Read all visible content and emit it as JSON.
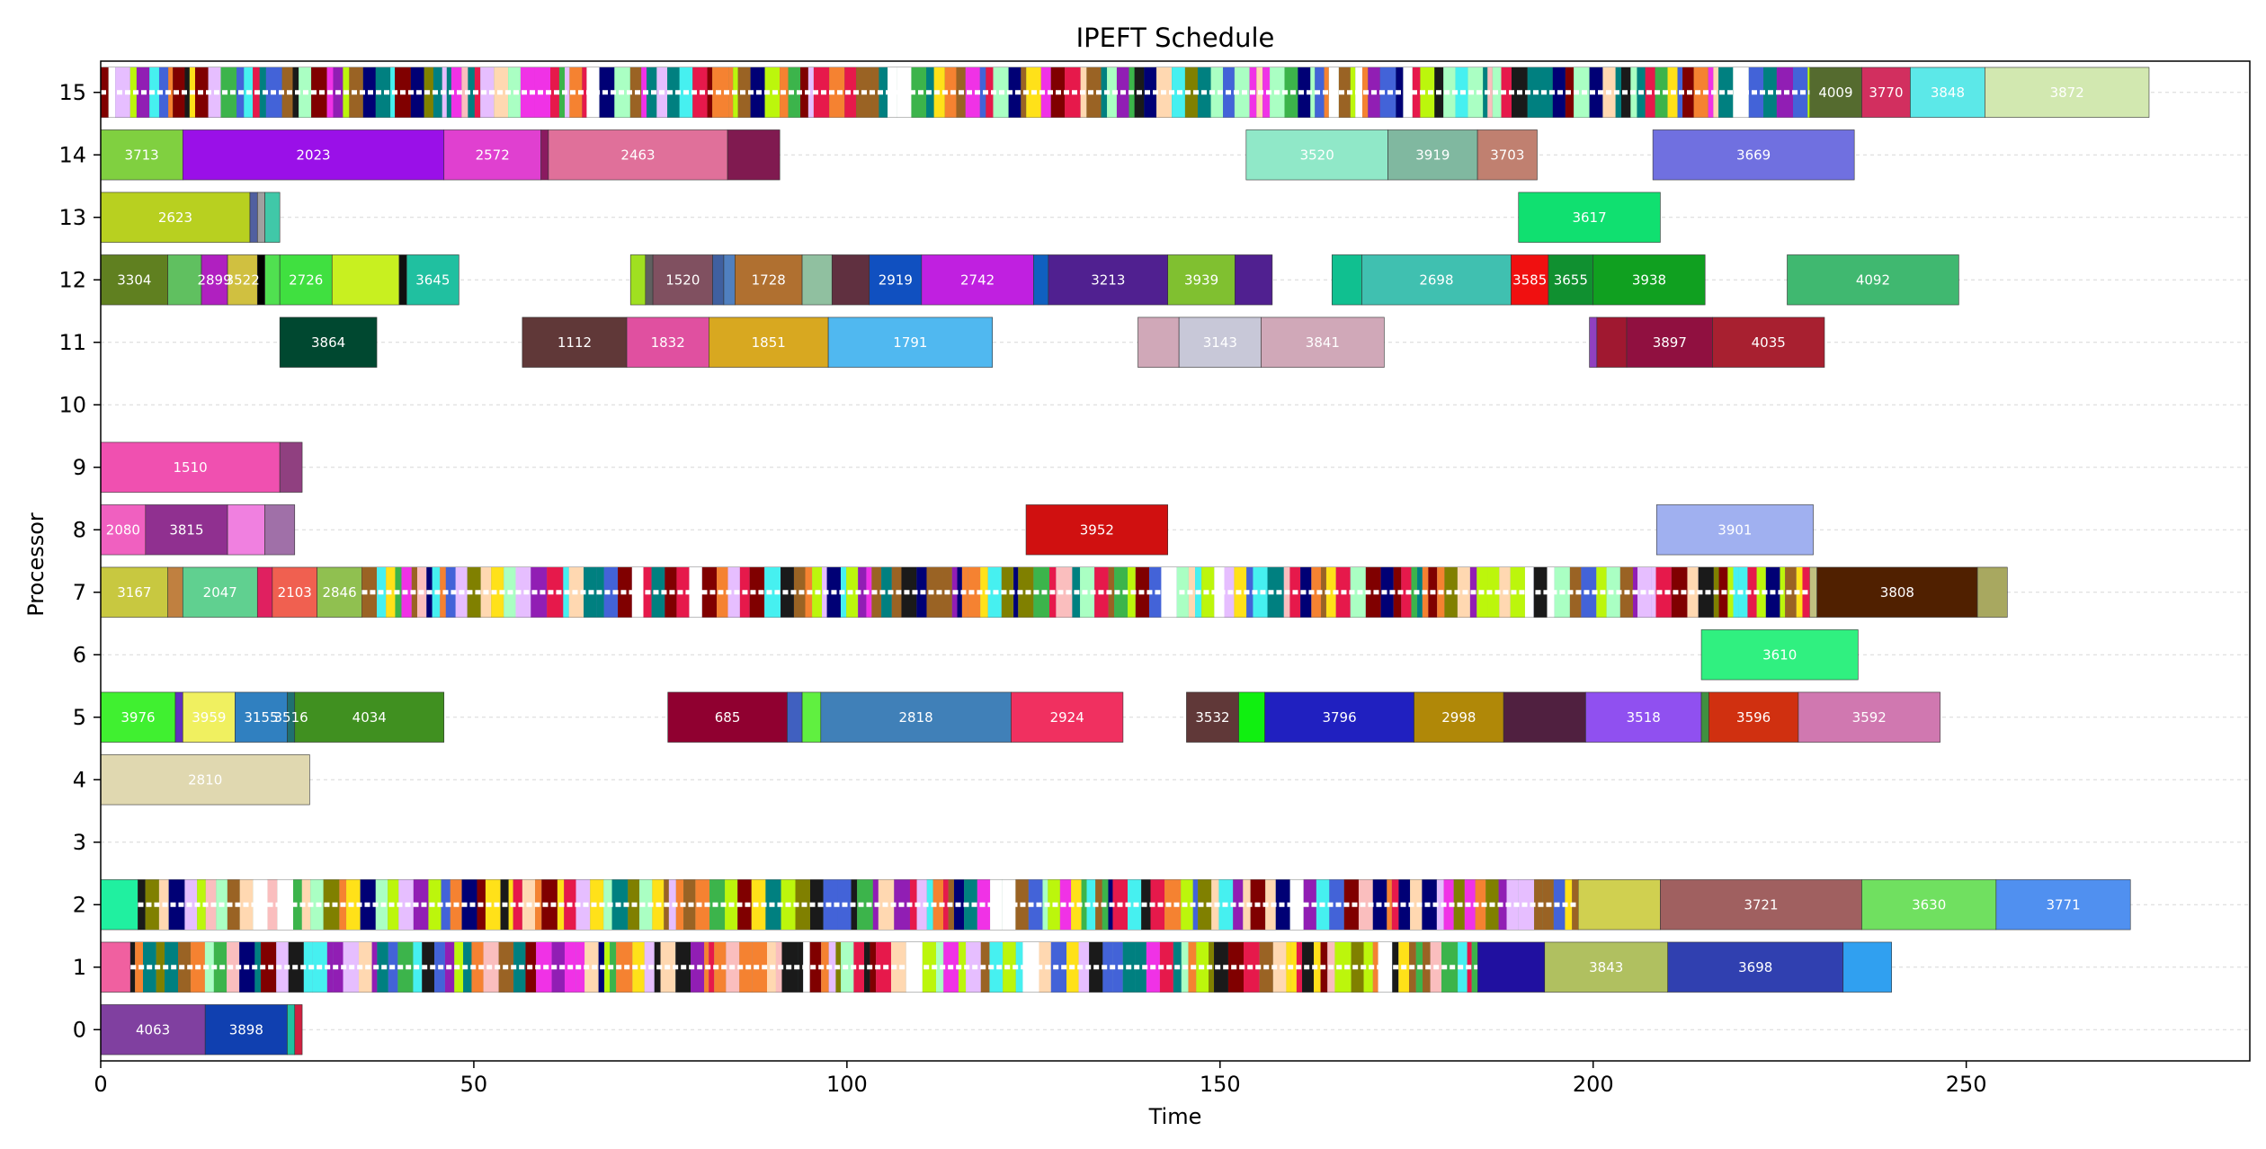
{
  "chart_data": {
    "type": "gantt",
    "title": "IPEFT Schedule",
    "xlabel": "Time",
    "ylabel": "Processor",
    "xlim": [
      0,
      288
    ],
    "ylim": [
      -0.5,
      15.5
    ],
    "x_ticks": [
      0,
      50,
      100,
      150,
      200,
      250
    ],
    "y_ticks": [
      0,
      1,
      2,
      3,
      4,
      5,
      6,
      7,
      8,
      9,
      10,
      11,
      12,
      13,
      14,
      15
    ],
    "grid": "horizontal",
    "bars": [
      {
        "p": 15,
        "s": 0,
        "e": 229,
        "c": "#2e8b57",
        "label": ""
      },
      {
        "p": 15,
        "s": 229,
        "e": 236,
        "c": "#556b2f",
        "label": "4009"
      },
      {
        "p": 15,
        "s": 236,
        "e": 242.5,
        "c": "#d22f5f",
        "label": "3770"
      },
      {
        "p": 15,
        "s": 242.5,
        "e": 252.5,
        "c": "#5ce8e8",
        "label": "3848"
      },
      {
        "p": 15,
        "s": 252.5,
        "e": 274.5,
        "c": "#d2e8b0",
        "label": "3872"
      },
      {
        "p": 14,
        "s": 0,
        "e": 11,
        "c": "#80d040",
        "label": "3713"
      },
      {
        "p": 14,
        "s": 11,
        "e": 46,
        "c": "#9a10e8",
        "label": "2023"
      },
      {
        "p": 14,
        "s": 46,
        "e": 59,
        "c": "#e040d0",
        "label": "2572"
      },
      {
        "p": 14,
        "s": 59,
        "e": 60,
        "c": "#8a1a60",
        "label": ""
      },
      {
        "p": 14,
        "s": 60,
        "e": 84,
        "c": "#e0709a",
        "label": "2463"
      },
      {
        "p": 14,
        "s": 84,
        "e": 91,
        "c": "#801a50",
        "label": ""
      },
      {
        "p": 14,
        "s": 153.5,
        "e": 172.5,
        "c": "#90e8c8",
        "label": "3520"
      },
      {
        "p": 14,
        "s": 172.5,
        "e": 184.5,
        "c": "#80b8a0",
        "label": "3919"
      },
      {
        "p": 14,
        "s": 184.5,
        "e": 192.5,
        "c": "#c08070",
        "label": "3703"
      },
      {
        "p": 14,
        "s": 208,
        "e": 235,
        "c": "#7070e0",
        "label": "3669"
      },
      {
        "p": 13,
        "s": 0,
        "e": 20,
        "c": "#b8d020",
        "label": "2623"
      },
      {
        "p": 13,
        "s": 20,
        "e": 21,
        "c": "#5060a0",
        "label": ""
      },
      {
        "p": 13,
        "s": 21,
        "e": 22,
        "c": "#a0a0a0",
        "label": ""
      },
      {
        "p": 13,
        "s": 22,
        "e": 24,
        "c": "#40c8a8",
        "label": ""
      },
      {
        "p": 13,
        "s": 190,
        "e": 209,
        "c": "#10e070",
        "label": "3617"
      },
      {
        "p": 12,
        "s": 0,
        "e": 9,
        "c": "#608020",
        "label": "3304"
      },
      {
        "p": 12,
        "s": 9,
        "e": 13.5,
        "c": "#60c060",
        "label": ""
      },
      {
        "p": 12,
        "s": 13.5,
        "e": 17,
        "c": "#b020c0",
        "label": "2899"
      },
      {
        "p": 12,
        "s": 17,
        "e": 21,
        "c": "#d0c040",
        "label": "3522"
      },
      {
        "p": 12,
        "s": 21,
        "e": 22,
        "c": "#000000",
        "label": ""
      },
      {
        "p": 12,
        "s": 22,
        "e": 24,
        "c": "#50e050",
        "label": ""
      },
      {
        "p": 12,
        "s": 24,
        "e": 31,
        "c": "#40e040",
        "label": "2726"
      },
      {
        "p": 12,
        "s": 31,
        "e": 40,
        "c": "#c8f020",
        "label": ""
      },
      {
        "p": 12,
        "s": 40,
        "e": 41,
        "c": "#101010",
        "label": ""
      },
      {
        "p": 12,
        "s": 41,
        "e": 48,
        "c": "#20c0a0",
        "label": "3645"
      },
      {
        "p": 12,
        "s": 71,
        "e": 73,
        "c": "#a0e020",
        "label": ""
      },
      {
        "p": 12,
        "s": 73,
        "e": 74,
        "c": "#606060",
        "label": ""
      },
      {
        "p": 12,
        "s": 74,
        "e": 82,
        "c": "#805060",
        "label": "1520"
      },
      {
        "p": 12,
        "s": 82,
        "e": 83.5,
        "c": "#4060a0",
        "label": ""
      },
      {
        "p": 12,
        "s": 83.5,
        "e": 85,
        "c": "#5080c0",
        "label": ""
      },
      {
        "p": 12,
        "s": 85,
        "e": 94,
        "c": "#b07030",
        "label": "1728"
      },
      {
        "p": 12,
        "s": 94,
        "e": 98,
        "c": "#90c0a0",
        "label": ""
      },
      {
        "p": 12,
        "s": 98,
        "e": 103,
        "c": "#603040",
        "label": ""
      },
      {
        "p": 12,
        "s": 103,
        "e": 110,
        "c": "#1050c0",
        "label": "2919"
      },
      {
        "p": 12,
        "s": 110,
        "e": 125,
        "c": "#c020e0",
        "label": "2742"
      },
      {
        "p": 12,
        "s": 125,
        "e": 127,
        "c": "#1060c0",
        "label": ""
      },
      {
        "p": 12,
        "s": 127,
        "e": 143,
        "c": "#502090",
        "label": "3213"
      },
      {
        "p": 12,
        "s": 143,
        "e": 152,
        "c": "#80c030",
        "label": "3939"
      },
      {
        "p": 12,
        "s": 152,
        "e": 157,
        "c": "#502090",
        "label": ""
      },
      {
        "p": 12,
        "s": 165,
        "e": 169,
        "c": "#10c090",
        "label": ""
      },
      {
        "p": 12,
        "s": 169,
        "e": 189,
        "c": "#40c0b0",
        "label": "2698"
      },
      {
        "p": 12,
        "s": 189,
        "e": 194,
        "c": "#f01010",
        "label": "3585"
      },
      {
        "p": 12,
        "s": 194,
        "e": 200,
        "c": "#109030",
        "label": "3655"
      },
      {
        "p": 12,
        "s": 200,
        "e": 215,
        "c": "#10a020",
        "label": "3938"
      },
      {
        "p": 12,
        "s": 226,
        "e": 249,
        "c": "#40b870",
        "label": "4092"
      },
      {
        "p": 11,
        "s": 24,
        "e": 37,
        "c": "#004830",
        "label": "3864"
      },
      {
        "p": 11,
        "s": 56.5,
        "e": 70.5,
        "c": "#603838",
        "label": "1112"
      },
      {
        "p": 11,
        "s": 70.5,
        "e": 81.5,
        "c": "#e050a0",
        "label": "1832"
      },
      {
        "p": 11,
        "s": 81.5,
        "e": 97.5,
        "c": "#d8a820",
        "label": "1851"
      },
      {
        "p": 11,
        "s": 97.5,
        "e": 119.5,
        "c": "#50b8f0",
        "label": "1791"
      },
      {
        "p": 11,
        "s": 139,
        "e": 144.5,
        "c": "#d0a8b8",
        "label": ""
      },
      {
        "p": 11,
        "s": 144.5,
        "e": 155.5,
        "c": "#c8c8d8",
        "label": "3143"
      },
      {
        "p": 11,
        "s": 155.5,
        "e": 172,
        "c": "#d0a8b8",
        "label": "3841"
      },
      {
        "p": 11,
        "s": 199.5,
        "e": 200.5,
        "c": "#9040c0",
        "label": ""
      },
      {
        "p": 11,
        "s": 200.5,
        "e": 204.5,
        "c": "#a01830",
        "label": ""
      },
      {
        "p": 11,
        "s": 204.5,
        "e": 216,
        "c": "#901040",
        "label": "3897"
      },
      {
        "p": 11,
        "s": 216,
        "e": 231,
        "c": "#a82030",
        "label": "4035"
      },
      {
        "p": 9,
        "s": 0,
        "e": 24,
        "c": "#f050b0",
        "label": "1510"
      },
      {
        "p": 9,
        "s": 24,
        "e": 27,
        "c": "#904080",
        "label": ""
      },
      {
        "p": 8,
        "s": 0,
        "e": 6,
        "c": "#f060c0",
        "label": "2080"
      },
      {
        "p": 8,
        "s": 6,
        "e": 17,
        "c": "#903090",
        "label": "3815"
      },
      {
        "p": 8,
        "s": 17,
        "e": 22,
        "c": "#f080e0",
        "label": ""
      },
      {
        "p": 8,
        "s": 22,
        "e": 26,
        "c": "#a070a8",
        "label": ""
      },
      {
        "p": 8,
        "s": 124,
        "e": 143,
        "c": "#d01010",
        "label": "3952"
      },
      {
        "p": 8,
        "s": 208.5,
        "e": 229.5,
        "c": "#a0b0f0",
        "label": "3901"
      },
      {
        "p": 7,
        "s": 0,
        "e": 9,
        "c": "#c8c840",
        "label": "3167"
      },
      {
        "p": 7,
        "s": 9,
        "e": 11,
        "c": "#c08040",
        "label": ""
      },
      {
        "p": 7,
        "s": 11,
        "e": 21,
        "c": "#60d090",
        "label": "2047"
      },
      {
        "p": 7,
        "s": 21,
        "e": 23,
        "c": "#e02060",
        "label": ""
      },
      {
        "p": 7,
        "s": 23,
        "e": 29,
        "c": "#f06050",
        "label": "2103"
      },
      {
        "p": 7,
        "s": 29,
        "e": 35,
        "c": "#90c050",
        "label": "2846"
      },
      {
        "p": 7,
        "s": 35,
        "e": 229,
        "c": "#7080d0",
        "label": ""
      },
      {
        "p": 7,
        "s": 229,
        "e": 230,
        "c": "#c0c080",
        "label": ""
      },
      {
        "p": 7,
        "s": 230,
        "e": 251.5,
        "c": "#502000",
        "label": "3808"
      },
      {
        "p": 7,
        "s": 251.5,
        "e": 255.5,
        "c": "#a8a860",
        "label": ""
      },
      {
        "p": 6,
        "s": 214.5,
        "e": 235.5,
        "c": "#30f080",
        "label": "3610"
      },
      {
        "p": 5,
        "s": 0,
        "e": 10,
        "c": "#40f030",
        "label": "3976"
      },
      {
        "p": 5,
        "s": 10,
        "e": 11,
        "c": "#6030c0",
        "label": ""
      },
      {
        "p": 5,
        "s": 11,
        "e": 18,
        "c": "#f0f060",
        "label": "3959"
      },
      {
        "p": 5,
        "s": 18,
        "e": 25,
        "c": "#3080c0",
        "label": "3155"
      },
      {
        "p": 5,
        "s": 25,
        "e": 26,
        "c": "#207070",
        "label": "3516"
      },
      {
        "p": 5,
        "s": 26,
        "e": 46,
        "c": "#409020",
        "label": "4034"
      },
      {
        "p": 5,
        "s": 76,
        "e": 92,
        "c": "#900030",
        "label": "685"
      },
      {
        "p": 5,
        "s": 92,
        "e": 94,
        "c": "#4060c0",
        "label": ""
      },
      {
        "p": 5,
        "s": 94,
        "e": 96.5,
        "c": "#60f040",
        "label": ""
      },
      {
        "p": 5,
        "s": 96.5,
        "e": 122,
        "c": "#4080b8",
        "label": "2818"
      },
      {
        "p": 5,
        "s": 122,
        "e": 137,
        "c": "#f03060",
        "label": "2924"
      },
      {
        "p": 5,
        "s": 145.5,
        "e": 152.5,
        "c": "#603838",
        "label": "3532"
      },
      {
        "p": 5,
        "s": 152.5,
        "e": 156,
        "c": "#10f010",
        "label": ""
      },
      {
        "p": 5,
        "s": 156,
        "e": 176,
        "c": "#2020c0",
        "label": "3796"
      },
      {
        "p": 5,
        "s": 176,
        "e": 188,
        "c": "#b08808",
        "label": "2998"
      },
      {
        "p": 5,
        "s": 188,
        "e": 199,
        "c": "#502040",
        "label": ""
      },
      {
        "p": 5,
        "s": 199,
        "e": 214.5,
        "c": "#9050f0",
        "label": "3518"
      },
      {
        "p": 5,
        "s": 214.5,
        "e": 215.5,
        "c": "#409040",
        "label": ""
      },
      {
        "p": 5,
        "s": 215.5,
        "e": 227.5,
        "c": "#d03010",
        "label": "3596"
      },
      {
        "p": 5,
        "s": 227.5,
        "e": 246.5,
        "c": "#d078b0",
        "label": "3592"
      },
      {
        "p": 4,
        "s": 0,
        "e": 28,
        "c": "#e0d8b0",
        "label": "2810"
      },
      {
        "p": 2,
        "s": 0,
        "e": 5,
        "c": "#20f0a0",
        "label": ""
      },
      {
        "p": 2,
        "s": 5,
        "e": 198,
        "c": "#60a080",
        "label": ""
      },
      {
        "p": 2,
        "s": 198,
        "e": 209,
        "c": "#d0d050",
        "label": ""
      },
      {
        "p": 2,
        "s": 209,
        "e": 236,
        "c": "#a06060",
        "label": "3721"
      },
      {
        "p": 2,
        "s": 236,
        "e": 254,
        "c": "#70e060",
        "label": "3630"
      },
      {
        "p": 2,
        "s": 254,
        "e": 272,
        "c": "#5090f0",
        "label": "3771"
      },
      {
        "p": 1,
        "s": 0,
        "e": 4,
        "c": "#f060a0",
        "label": ""
      },
      {
        "p": 1,
        "s": 4,
        "e": 184.5,
        "c": "#70a0c0",
        "label": ""
      },
      {
        "p": 1,
        "s": 184.5,
        "e": 193.5,
        "c": "#2010a0",
        "label": ""
      },
      {
        "p": 1,
        "s": 193.5,
        "e": 210,
        "c": "#b0c060",
        "label": "3843"
      },
      {
        "p": 1,
        "s": 210,
        "e": 233.5,
        "c": "#3040b0",
        "label": "3698"
      },
      {
        "p": 1,
        "s": 233.5,
        "e": 240,
        "c": "#30a0f0",
        "label": ""
      },
      {
        "p": 0,
        "s": 0,
        "e": 14,
        "c": "#8040a0",
        "label": "4063"
      },
      {
        "p": 0,
        "s": 14,
        "e": 25,
        "c": "#1040b0",
        "label": "3898"
      },
      {
        "p": 0,
        "s": 25,
        "e": 26,
        "c": "#20c0a0",
        "label": ""
      },
      {
        "p": 0,
        "s": 26,
        "e": 27,
        "c": "#d02040",
        "label": ""
      }
    ],
    "stripe_rows": [
      1,
      2,
      7,
      15
    ]
  }
}
